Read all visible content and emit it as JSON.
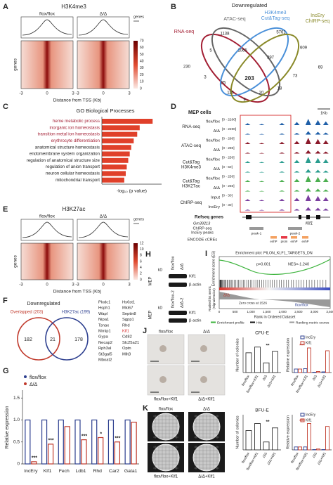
{
  "A": {
    "label": "A",
    "title": "H3K4me3",
    "groups": [
      "flox/flox",
      "Δ/Δ"
    ],
    "key": "genes",
    "row_label": "genes",
    "ticks": [
      "-3",
      "0",
      "3",
      "-3",
      "0",
      "3"
    ],
    "xlabel": "Distance from TSS (Kb)",
    "scale": [
      0,
      10,
      20,
      30,
      40,
      50,
      60,
      70
    ]
  },
  "B": {
    "label": "B",
    "title": "Downregulated",
    "sets": [
      [
        "RNA-seq"
      ],
      [
        "ATAC-seq"
      ],
      [
        "H3K4me3",
        "Cut&Tag-seq"
      ],
      [
        "IncEry",
        "ChIRP-seq"
      ]
    ],
    "colors": [
      "#a31f34",
      "#666666",
      "#4a90d9",
      "#8a8a2a"
    ],
    "counts": [
      230,
      1138,
      5761,
      609,
      5,
      1065,
      397,
      69,
      3,
      73,
      25,
      203,
      115,
      9,
      20,
      18
    ]
  },
  "C": {
    "label": "C",
    "title": "GO Biological Processes",
    "terms": [
      "heme metabolic process",
      "inorganic ion homeostasis",
      "transition metal ion homeostasis",
      "erythrocyte differentiation",
      "anatomical structure homeostasis",
      "endomembrane system organization",
      "regulation of anatomical structure size",
      "regulation of anion transport",
      "neuron cellular homeostasis",
      "mitochondrial transport"
    ],
    "values": [
      10.2,
      7.6,
      7.1,
      6.4,
      5.9,
      5.6,
      5.3,
      5.0,
      4.8,
      4.5
    ],
    "label_colors": [
      "#a31f34",
      "#a31f34",
      "#a31f34",
      "#a31f34",
      "#222222",
      "#222222",
      "#222222",
      "#222222",
      "#222222",
      "#222222"
    ],
    "color": "#e0402a",
    "xlim": [
      0,
      12
    ],
    "xlabel": "-log₁₀ (p value)"
  },
  "D": {
    "label": "D",
    "cells": "MEP cells",
    "scale": "1Kb",
    "tracks": [
      {
        "name": [
          "RNA-seq"
        ],
        "color": "#1f5fa8",
        "rows": [
          {
            "geno": "flox/flox",
            "range": "[0 - 2200]"
          },
          {
            "geno": "Δ/Δ",
            "range": "[0 - 2200]"
          }
        ]
      },
      {
        "name": [
          "ATAC-seq"
        ],
        "color": "#8b1a2b",
        "rows": [
          {
            "geno": "flox/flox",
            "range": "[0 - 280]"
          },
          {
            "geno": "Δ/Δ",
            "range": "[0 - 280]"
          }
        ]
      },
      {
        "name": [
          "Cut&Tag",
          "H3K4me3"
        ],
        "color": "#2a9d8f",
        "rows": [
          {
            "geno": "flox/flox",
            "range": "[0 - 250]"
          },
          {
            "geno": "Δ/Δ",
            "range": "[0 - 50]"
          }
        ]
      },
      {
        "name": [
          "Cut&Tag",
          "H3K27ac"
        ],
        "color": "#4caf50",
        "rows": [
          {
            "geno": "flox/flox",
            "range": "[0 - 250]"
          },
          {
            "geno": "Δ/Δ",
            "range": "[0 - 250]"
          }
        ]
      },
      {
        "name": [
          "ChIRP-seq"
        ],
        "color": "#7b3fa0",
        "rows": [
          {
            "geno": "Input",
            "range": "[0 - 30]"
          },
          {
            "geno": "IncEry",
            "range": "[0 - 30]"
          }
        ]
      }
    ],
    "refseq": "Refseq genes",
    "genes": [
      "Gm39213",
      "Klf1"
    ],
    "peaks_label": [
      "ChIRP-seq",
      "IncEry peaks"
    ],
    "peaks": [
      "peak-1",
      "peak-2"
    ],
    "ccre_label": "ENCODE cCREs",
    "ccres": [
      "enhP",
      "prom",
      "enhP",
      "enhP"
    ]
  },
  "E": {
    "label": "E",
    "title": "H3K27ac",
    "groups": [
      "flox/flox",
      "Δ/Δ"
    ],
    "key": "genes",
    "row_label": "genes",
    "ticks": [
      "-3",
      "0",
      "3",
      "-3",
      "0",
      "3"
    ],
    "xlabel": "Distance from TSS (Kb)",
    "scale": [
      0,
      2,
      4,
      6,
      8,
      10,
      12
    ]
  },
  "F": {
    "label": "F",
    "title": "Downregulated",
    "sets": [
      "Overlapped (203)",
      "H3K27ac (199)"
    ],
    "colors": [
      "#c0392b",
      "#2d3f8f"
    ],
    "counts": [
      182,
      21,
      178
    ],
    "genes": [
      [
        "Plxdc1",
        "Hsph1",
        "Wapl",
        "Nipa1",
        "Tsnax",
        "Mrnip1",
        "Gypa",
        "Necap2",
        "Rph3al",
        "St3gal5",
        "Mboat2"
      ],
      [
        "Hs6st1",
        "Mki67",
        "Septin8",
        "Sgpp1",
        "Rhd",
        "Klf1",
        "Cd82",
        "Slc25a21",
        "Optn",
        "Mllt3"
      ]
    ],
    "highlight": "Klf1"
  },
  "G": {
    "label": "G",
    "ylabel": "Relative expression",
    "ylim": [
      0,
      1.6
    ],
    "yticks": [
      0,
      0.5,
      {
        "value": 1,
        "label": "1.0"
      },
      1.5
    ],
    "categories": [
      "IncEry",
      "Klf1",
      "Fech",
      "Ldb1",
      "Rhd",
      "Car2",
      "Gata1"
    ],
    "series": [
      {
        "name": "flox/flox",
        "color": "#2d3f8f",
        "values": [
          1,
          1,
          1,
          1,
          1,
          1,
          1
        ]
      },
      {
        "name": "Δ/Δ",
        "color": "#c0392b",
        "values": [
          0.05,
          0.45,
          0.85,
          0.55,
          0.6,
          0.5,
          0.95
        ]
      }
    ],
    "significance": [
      "***",
      "***",
      null,
      "***",
      "*",
      "***",
      null
    ]
  },
  "H": {
    "label": "H",
    "lanes": [
      "flox/flox",
      "Δ/Δ"
    ],
    "lanes2": [
      "flox/flox-2",
      "Δ/Δ-2"
    ],
    "unit": "kD",
    "cell": "MEP",
    "bands": [
      "Klf1",
      "β-actin"
    ]
  },
  "I": {
    "label": "I",
    "title": "Enrichment plot: PILON_KLF1_TARGETS_DN",
    "stats": [
      "p=0.001",
      "NES=-1.240"
    ],
    "ylabel1": "Enrichment score (ES)",
    "ylabel2": [
      "Ranked list metric",
      "(Signal2Noise)"
    ],
    "zero": "Zero cross at 1526",
    "pheno": [
      "Δ/Δ",
      "flox/flox"
    ],
    "xlabel": "Rank in Ordered Dataset",
    "xticks": [
      "0",
      "500",
      "1,000",
      "1,500",
      "2,000",
      "2,500",
      "3,000",
      "3,500"
    ],
    "legend": [
      "Enrichment profile",
      "Hits",
      "Ranking metric scores"
    ],
    "legend_colors": [
      "#3bb33b",
      "#111111",
      "#999999"
    ]
  },
  "J": {
    "label": "J",
    "groups": [
      "flox/flox",
      "Δ/Δ",
      "flox/flox+Klf1",
      "Δ/Δ+Klf1"
    ],
    "assay": "CFU-E",
    "ylabel": "Number of colonies",
    "ticks": [
      "flox/flox",
      "flox/flox+Klf1",
      "Δ/Δ",
      "Δ/Δ+Klf1"
    ],
    "values": [
      45,
      58,
      22,
      48
    ],
    "ylim": [
      0,
      80
    ],
    "ylabel2": "Relative expression",
    "series": [
      {
        "name": "IncEry",
        "color": "#2d3f8f",
        "values": [
          1,
          1.1,
          0.1,
          0.2
        ]
      },
      {
        "name": "Klf1",
        "color": "#c0392b",
        "values": [
          1,
          7,
          0.3,
          6.2
        ]
      }
    ],
    "y2lim": [
      0,
      10
    ],
    "sig": [
      "**",
      "***"
    ]
  },
  "K": {
    "label": "K",
    "groups": [
      "flox/flox",
      "Δ/Δ",
      "flox/flox+Klf1",
      "Δ/Δ+Klf1"
    ],
    "assay": "BFU-E",
    "ylabel": "Number of colonies",
    "ticks": [
      "flox/flox",
      "flox/flox+Klf1",
      "Δ/Δ",
      "Δ/Δ+Klf1"
    ],
    "values": [
      22,
      30,
      9,
      25
    ],
    "ylim": [
      0,
      40
    ],
    "ylabel2": "Relative expression",
    "series": [
      {
        "name": "IncEry",
        "color": "#2d3f8f",
        "values": [
          1,
          1,
          0.1,
          0.1
        ]
      },
      {
        "name": "Klf1",
        "color": "#c0392b",
        "values": [
          1,
          9,
          0.3,
          8
        ]
      }
    ],
    "y2lim": [
      0,
      12
    ],
    "sig": [
      "**",
      "***"
    ]
  }
}
